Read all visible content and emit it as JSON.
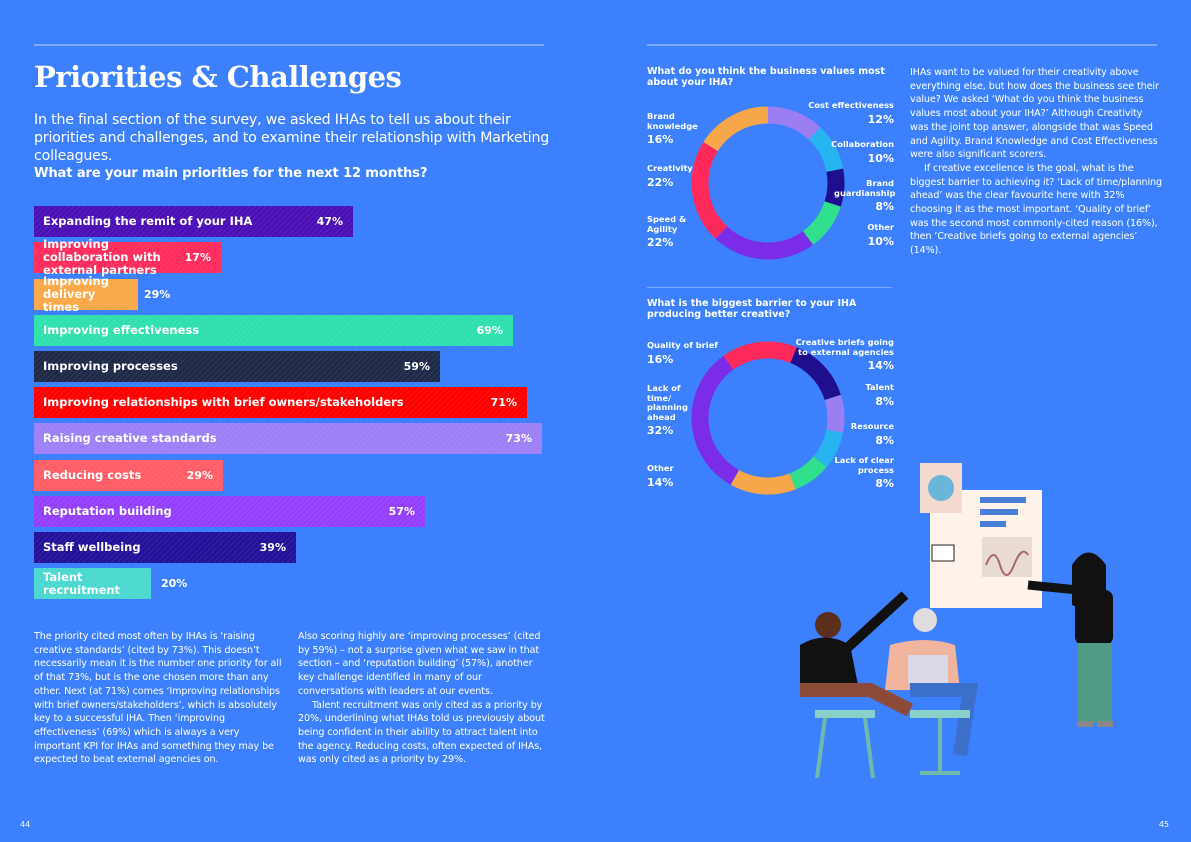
{
  "title": "Priorities & Challenges",
  "intro": "In the final section of the survey, we asked IHAs to tell us about their priorities and challenges, and to examine their relationship with Marketing colleagues.",
  "priorities_question": "What are your main priorities for the next 12 months?",
  "priorities": [
    {
      "label": "Expanding the remit of your IHA",
      "value": "47%",
      "color": "#4a0fb5"
    },
    {
      "label": "Improving collaboration with external partners",
      "value": "17%",
      "color": "#ff2c5c"
    },
    {
      "label": "Improving delivery times",
      "value": "29%",
      "color": "#f9a84a"
    },
    {
      "label": "Improving effectiveness",
      "value": "69%",
      "color": "#2fe0ad"
    },
    {
      "label": "Improving processes",
      "value": "59%",
      "color": "#1f2a48"
    },
    {
      "label": "Improving relationships with brief owners/stakeholders",
      "value": "71%",
      "color": "#ff0000"
    },
    {
      "label": "Raising creative standards",
      "value": "73%",
      "color": "#9d80f5"
    },
    {
      "label": "Reducing costs",
      "value": "29%",
      "color": "#ff5e67"
    },
    {
      "label": "Reputation building",
      "value": "57%",
      "color": "#9440fb"
    },
    {
      "label": "Staff wellbeing",
      "value": "39%",
      "color": "#24119a"
    },
    {
      "label": "Talent recruitment",
      "value": "20%",
      "color": "#4bd8cf"
    }
  ],
  "left_text": [
    "The priority cited most often by IHAs is ‘raising creative standards’ (cited by 73%). This doesn’t necessarily mean it is the number one priority for all of that 73%, but is the one chosen more than any other. Next (at 71%) comes ‘Improving relationships with brief owners/stakeholders’, which is absolutely key to a successful IHA. Then ‘improving effectiveness’ (69%) which is always a very important KPI for IHAs and something they may be expected to beat external agencies on."
  ],
  "middle_text": [
    "Also scoring highly are ‘improving processes’ (cited by 59%) – not a surprise given what we saw in that section – and ‘reputation building’ (57%), another key challenge identified in many of our conversations with leaders at our events.",
    "Talent recruitment was only cited as a priority by 20%, underlining what IHAs told us previously about being confident in their ability to attract talent into the agency. Reducing costs, often expected of IHAs, was only cited as a priority by 29%."
  ],
  "right_text": [
    "IHAs want to be valued for their creativity above everything else, but how does the business see their value? We asked ‘What do you think the business values most about your IHA?’ Although Creativity was the joint top answer, alongside that was Speed and Agility. Brand Knowledge and Cost Effectiveness were also significant scorers.",
    "If creative excellence is the goal, what is the biggest barrier to achieving it? ‘Lack of time/planning ahead’ was the clear favourite here with 32% choosing it as the most important. ‘Quality of brief’ was the second most commonly-cited reason (16%), then ‘Creative briefs going to external agencies’ (14%)."
  ],
  "chart_data": [
    {
      "type": "pie",
      "title": "What do you think the business values most about your IHA?",
      "donut": true,
      "slices": [
        {
          "label": "Cost effectiveness",
          "value": 12,
          "display": "12%",
          "color": "#9b7ff2"
        },
        {
          "label": "Collaboration",
          "value": 10,
          "display": "10%",
          "color": "#27b4f0"
        },
        {
          "label": "Brand guardianship",
          "value": 8,
          "display": "8%",
          "color": "#1f0f8f"
        },
        {
          "label": "Other",
          "value": 10,
          "display": "10%",
          "color": "#30e08c"
        },
        {
          "label": "Speed & Agility",
          "value": 22,
          "display": "22%",
          "color": "#7a2ce8"
        },
        {
          "label": "Creativity",
          "value": 22,
          "display": "22%",
          "color": "#ff2a5a"
        },
        {
          "label": "Brand knowledge",
          "value": 16,
          "display": "16%",
          "color": "#f7a74a"
        }
      ]
    },
    {
      "type": "pie",
      "title": "What is the biggest barrier to your IHA producing better creative?",
      "donut": true,
      "slices": [
        {
          "label": "Creative briefs going to external agencies",
          "value": 14,
          "display": "14%",
          "color": "#1f0f8f"
        },
        {
          "label": "Talent",
          "value": 8,
          "display": "8%",
          "color": "#9b7ff2"
        },
        {
          "label": "Resource",
          "value": 8,
          "display": "8%",
          "color": "#27b4f0"
        },
        {
          "label": "Lack of clear process",
          "value": 8,
          "display": "8%",
          "color": "#30e08c"
        },
        {
          "label": "Other",
          "value": 14,
          "display": "14%",
          "color": "#f7a74a"
        },
        {
          "label": "Lack of time/ planning ahead",
          "value": 32,
          "display": "32%",
          "color": "#7a2ce8"
        },
        {
          "label": "Quality of brief",
          "value": 16,
          "display": "16%",
          "color": "#ff2a5a"
        }
      ]
    }
  ],
  "page_numbers": {
    "left": "44",
    "right": "45"
  }
}
